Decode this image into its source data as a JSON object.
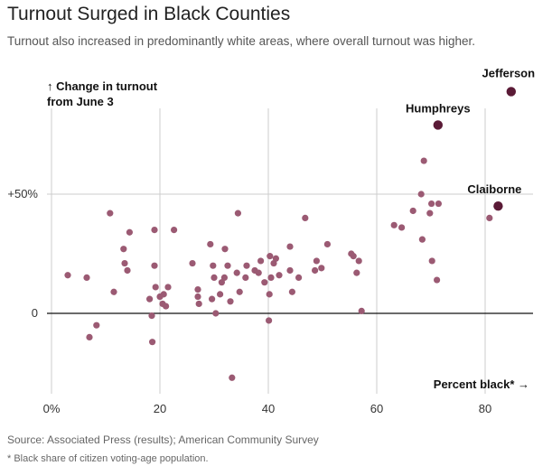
{
  "header": {
    "title": "Turnout Surged in Black Counties",
    "subtitle": "Turnout also increased in predominantly white areas, where overall turnout was higher."
  },
  "footer": {
    "source": "Source: Associated Press (results); American Community Survey",
    "footnote": "* Black share of citizen voting-age population."
  },
  "colors": {
    "point": "#9b5a73",
    "highlight": "#5a1a36",
    "grid": "#cccccc",
    "zero_line": "#111111"
  },
  "chart_data": {
    "type": "scatter",
    "title": "Turnout Surged in Black Counties",
    "xlabel": "Percent black* →",
    "ylabel_lines": [
      "↑ Change in turnout",
      "from June 3"
    ],
    "xlim": [
      0,
      90
    ],
    "ylim": [
      -33,
      100
    ],
    "x_ticks": [
      0,
      20,
      40,
      60,
      80
    ],
    "x_tick_labels": [
      "0%",
      "20",
      "40",
      "60",
      "80"
    ],
    "y_ticks": [
      0,
      50
    ],
    "y_tick_labels": [
      "0",
      "+50%"
    ],
    "grid": true,
    "points": [
      {
        "x": 3,
        "y": 16
      },
      {
        "x": 6.5,
        "y": 15
      },
      {
        "x": 7,
        "y": -10
      },
      {
        "x": 8.3,
        "y": -5
      },
      {
        "x": 10.8,
        "y": 42
      },
      {
        "x": 11.5,
        "y": 9
      },
      {
        "x": 13.3,
        "y": 27
      },
      {
        "x": 13.5,
        "y": 21
      },
      {
        "x": 14,
        "y": 18
      },
      {
        "x": 14.4,
        "y": 34
      },
      {
        "x": 18.1,
        "y": 6
      },
      {
        "x": 18.5,
        "y": -1
      },
      {
        "x": 18.6,
        "y": -12
      },
      {
        "x": 19,
        "y": 20
      },
      {
        "x": 19,
        "y": 35
      },
      {
        "x": 19.2,
        "y": 11
      },
      {
        "x": 20,
        "y": 7
      },
      {
        "x": 20.5,
        "y": 4
      },
      {
        "x": 20.7,
        "y": 8
      },
      {
        "x": 21.1,
        "y": 3
      },
      {
        "x": 21.5,
        "y": 11
      },
      {
        "x": 22.6,
        "y": 35
      },
      {
        "x": 26,
        "y": 21
      },
      {
        "x": 27,
        "y": 10
      },
      {
        "x": 27,
        "y": 7
      },
      {
        "x": 27.2,
        "y": 4
      },
      {
        "x": 29.3,
        "y": 29
      },
      {
        "x": 29.6,
        "y": 6
      },
      {
        "x": 29.8,
        "y": 20
      },
      {
        "x": 30,
        "y": 15
      },
      {
        "x": 30.3,
        "y": 0
      },
      {
        "x": 31.1,
        "y": 8
      },
      {
        "x": 31.4,
        "y": 13
      },
      {
        "x": 31.9,
        "y": 15
      },
      {
        "x": 32,
        "y": 27
      },
      {
        "x": 32.5,
        "y": 20
      },
      {
        "x": 33,
        "y": 5
      },
      {
        "x": 33.3,
        "y": -27
      },
      {
        "x": 34.2,
        "y": 17
      },
      {
        "x": 34.4,
        "y": 42
      },
      {
        "x": 34.7,
        "y": 9
      },
      {
        "x": 35.8,
        "y": 15
      },
      {
        "x": 36,
        "y": 20
      },
      {
        "x": 37.5,
        "y": 18
      },
      {
        "x": 38.2,
        "y": 17
      },
      {
        "x": 38.6,
        "y": 22
      },
      {
        "x": 39.3,
        "y": 13
      },
      {
        "x": 40.1,
        "y": -3
      },
      {
        "x": 40.2,
        "y": 8
      },
      {
        "x": 40.3,
        "y": 24
      },
      {
        "x": 40.5,
        "y": 15
      },
      {
        "x": 41,
        "y": 21
      },
      {
        "x": 41.4,
        "y": 23
      },
      {
        "x": 42,
        "y": 16
      },
      {
        "x": 44,
        "y": 18
      },
      {
        "x": 44,
        "y": 28
      },
      {
        "x": 44.4,
        "y": 9
      },
      {
        "x": 45.6,
        "y": 15
      },
      {
        "x": 46.8,
        "y": 40
      },
      {
        "x": 48.6,
        "y": 18
      },
      {
        "x": 48.9,
        "y": 22
      },
      {
        "x": 49.8,
        "y": 19
      },
      {
        "x": 50.9,
        "y": 29
      },
      {
        "x": 55.3,
        "y": 25
      },
      {
        "x": 55.7,
        "y": 24
      },
      {
        "x": 56.3,
        "y": 17
      },
      {
        "x": 56.7,
        "y": 22
      },
      {
        "x": 57.2,
        "y": 1
      },
      {
        "x": 63.2,
        "y": 37
      },
      {
        "x": 64.6,
        "y": 36
      },
      {
        "x": 66.7,
        "y": 43
      },
      {
        "x": 68.2,
        "y": 50
      },
      {
        "x": 68.4,
        "y": 31
      },
      {
        "x": 68.7,
        "y": 64
      },
      {
        "x": 69.8,
        "y": 42
      },
      {
        "x": 70.1,
        "y": 46
      },
      {
        "x": 70.2,
        "y": 22
      },
      {
        "x": 71.1,
        "y": 14
      },
      {
        "x": 71.4,
        "y": 46
      },
      {
        "x": 80.8,
        "y": 40
      }
    ],
    "highlighted": [
      {
        "name": "Jefferson",
        "x": 84.8,
        "y": 93
      },
      {
        "name": "Humphreys",
        "x": 71.3,
        "y": 79
      },
      {
        "name": "Claiborne",
        "x": 82.4,
        "y": 45
      }
    ]
  }
}
